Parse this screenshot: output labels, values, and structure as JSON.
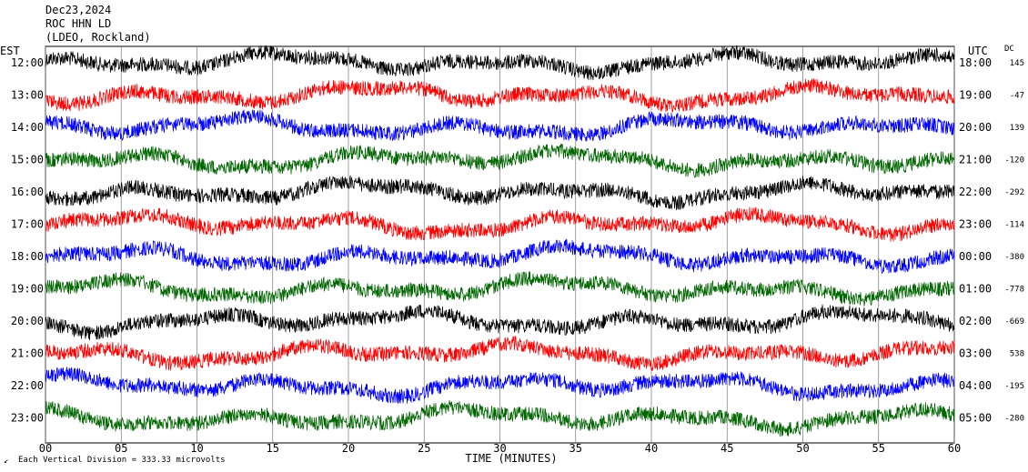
{
  "header": {
    "date": "Dec23,2024",
    "station": "ROC HHN LD",
    "network": "(LDEO, Rockland)"
  },
  "labels": {
    "est": "EST",
    "utc": "UTC",
    "dc": "DC",
    "x_axis_title": "TIME (MINUTES)",
    "scale_note": "Each Vertical Division =  333.33 microvolts"
  },
  "chart_data": {
    "type": "line",
    "x_ticks": [
      "00",
      "05",
      "10",
      "15",
      "20",
      "25",
      "30",
      "35",
      "40",
      "45",
      "50",
      "55",
      "60"
    ],
    "xlim": [
      0,
      60
    ],
    "rows": [
      {
        "est": "12:00",
        "utc": "18:00",
        "dc": "145",
        "color": "#000000"
      },
      {
        "est": "13:00",
        "utc": "19:00",
        "dc": "-47",
        "color": "#ff0000"
      },
      {
        "est": "14:00",
        "utc": "20:00",
        "dc": "139",
        "color": "#0000ff"
      },
      {
        "est": "15:00",
        "utc": "21:00",
        "dc": "-120",
        "color": "#006600"
      },
      {
        "est": "16:00",
        "utc": "22:00",
        "dc": "-292",
        "color": "#000000"
      },
      {
        "est": "17:00",
        "utc": "23:00",
        "dc": "-114",
        "color": "#ff0000"
      },
      {
        "est": "18:00",
        "utc": "00:00",
        "dc": "-380",
        "color": "#0000ff"
      },
      {
        "est": "19:00",
        "utc": "01:00",
        "dc": "-778",
        "color": "#006600"
      },
      {
        "est": "20:00",
        "utc": "02:00",
        "dc": "-669",
        "color": "#000000"
      },
      {
        "est": "21:00",
        "utc": "03:00",
        "dc": "538",
        "color": "#ff0000"
      },
      {
        "est": "22:00",
        "utc": "04:00",
        "dc": "-195",
        "color": "#0000ff"
      },
      {
        "est": "23:00",
        "utc": "05:00",
        "dc": "-280",
        "color": "#006600"
      }
    ]
  }
}
